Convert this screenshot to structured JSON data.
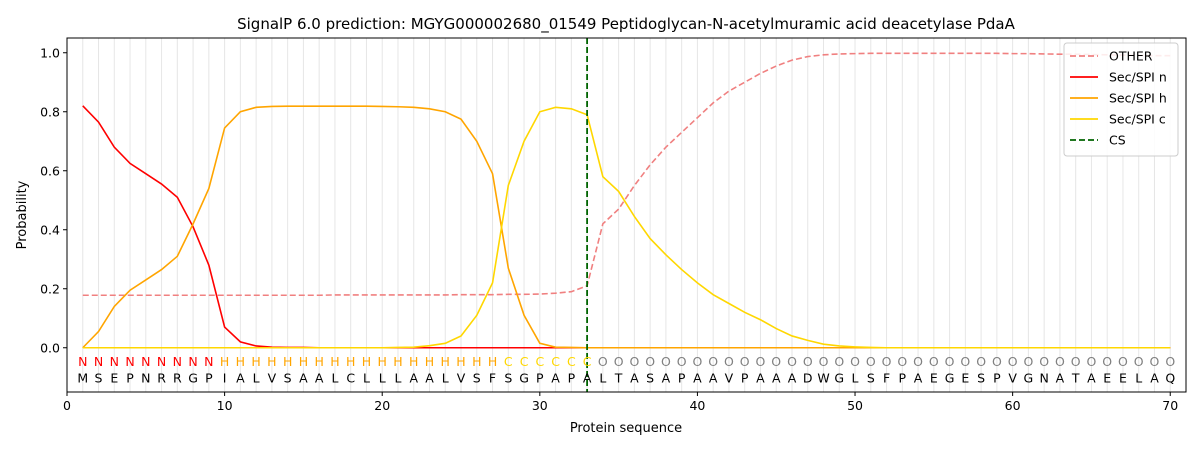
{
  "chart_data": {
    "type": "line",
    "title": "SignalP 6.0 prediction: MGYG000002680_01549 Peptidoglycan-N-acetylmuramic acid deacetylase PdaA",
    "xlabel": "Protein sequence",
    "ylabel": "Probability",
    "xlim": [
      0,
      71
    ],
    "ylim": [
      -0.15,
      1.05
    ],
    "xticks": [
      0,
      10,
      20,
      30,
      40,
      50,
      60,
      70
    ],
    "yticks": [
      0.0,
      0.2,
      0.4,
      0.6,
      0.8,
      1.0
    ],
    "xtick_labels": [
      "0",
      "10",
      "20",
      "30",
      "40",
      "50",
      "60",
      "70"
    ],
    "ytick_labels": [
      "0.0",
      "0.2",
      "0.4",
      "0.6",
      "0.8",
      "1.0"
    ],
    "legend_position": "top-right",
    "vertical_grid": true,
    "cs_position": 33,
    "sequence": [
      "M",
      "S",
      "E",
      "P",
      "N",
      "R",
      "R",
      "G",
      "P",
      "I",
      "A",
      "L",
      "V",
      "S",
      "A",
      "A",
      "L",
      "C",
      "L",
      "L",
      "L",
      "A",
      "A",
      "L",
      "V",
      "S",
      "F",
      "S",
      "G",
      "P",
      "A",
      "P",
      "A",
      "L",
      "T",
      "A",
      "S",
      "A",
      "P",
      "A",
      "A",
      "V",
      "P",
      "A",
      "A",
      "A",
      "D",
      "W",
      "G",
      "L",
      "S",
      "F",
      "P",
      "A",
      "E",
      "G",
      "E",
      "S",
      "P",
      "V",
      "G",
      "N",
      "A",
      "T",
      "A",
      "E",
      "E",
      "L",
      "A",
      "Q"
    ],
    "labels": [
      "N",
      "N",
      "N",
      "N",
      "N",
      "N",
      "N",
      "N",
      "N",
      "H",
      "H",
      "H",
      "H",
      "H",
      "H",
      "H",
      "H",
      "H",
      "H",
      "H",
      "H",
      "H",
      "H",
      "H",
      "H",
      "H",
      "H",
      "C",
      "C",
      "C",
      "C",
      "C",
      "C",
      "O",
      "O",
      "O",
      "O",
      "O",
      "O",
      "O",
      "O",
      "O",
      "O",
      "O",
      "O",
      "O",
      "O",
      "O",
      "O",
      "O",
      "O",
      "O",
      "O",
      "O",
      "O",
      "O",
      "O",
      "O",
      "O",
      "O",
      "O",
      "O",
      "O",
      "O",
      "O",
      "O",
      "O",
      "O",
      "O",
      "O"
    ],
    "label_colors": {
      "N": "#ff0000",
      "H": "#ffa500",
      "C": "#ffd700",
      "O": "#808080"
    },
    "series": [
      {
        "name": "OTHER",
        "color": "#f08080",
        "dash": true,
        "values": [
          0.178,
          0.178,
          0.178,
          0.178,
          0.178,
          0.178,
          0.178,
          0.178,
          0.178,
          0.178,
          0.178,
          0.178,
          0.178,
          0.178,
          0.178,
          0.178,
          0.179,
          0.179,
          0.179,
          0.179,
          0.179,
          0.179,
          0.179,
          0.179,
          0.18,
          0.18,
          0.18,
          0.181,
          0.181,
          0.182,
          0.185,
          0.19,
          0.21,
          0.42,
          0.47,
          0.55,
          0.62,
          0.68,
          0.73,
          0.78,
          0.83,
          0.87,
          0.9,
          0.93,
          0.955,
          0.975,
          0.987,
          0.993,
          0.996,
          0.997,
          0.998,
          0.998,
          0.998,
          0.998,
          0.998,
          0.998,
          0.998,
          0.998,
          0.998,
          0.997,
          0.997,
          0.996,
          0.995,
          0.995,
          0.994,
          0.993,
          0.992,
          0.991,
          0.99,
          0.99
        ]
      },
      {
        "name": "Sec/SPI n",
        "color": "#ff0000",
        "dash": false,
        "values": [
          0.82,
          0.765,
          0.68,
          0.625,
          0.59,
          0.555,
          0.51,
          0.41,
          0.28,
          0.07,
          0.02,
          0.006,
          0.002,
          0.001,
          0.001,
          0,
          0,
          0,
          0,
          0,
          0,
          0,
          0,
          0,
          0,
          0,
          0,
          0,
          0,
          0,
          0,
          0,
          0,
          0,
          0,
          0,
          0,
          0,
          0,
          0,
          0,
          0,
          0,
          0,
          0,
          0,
          0,
          0,
          0,
          0,
          0,
          0,
          0,
          0,
          0,
          0,
          0,
          0,
          0,
          0,
          0,
          0,
          0,
          0,
          0,
          0,
          0,
          0,
          0,
          0
        ]
      },
      {
        "name": "Sec/SPI h",
        "color": "#ffa500",
        "dash": false,
        "values": [
          0.0,
          0.055,
          0.14,
          0.195,
          0.23,
          0.265,
          0.31,
          0.42,
          0.54,
          0.745,
          0.8,
          0.815,
          0.818,
          0.819,
          0.819,
          0.819,
          0.819,
          0.819,
          0.819,
          0.818,
          0.817,
          0.815,
          0.81,
          0.8,
          0.775,
          0.7,
          0.59,
          0.27,
          0.11,
          0.015,
          0.002,
          0.001,
          0,
          0,
          0,
          0,
          0,
          0,
          0,
          0,
          0,
          0,
          0,
          0,
          0,
          0,
          0,
          0,
          0,
          0,
          0,
          0,
          0,
          0,
          0,
          0,
          0,
          0,
          0,
          0,
          0,
          0,
          0,
          0,
          0,
          0,
          0,
          0,
          0,
          0
        ]
      },
      {
        "name": "Sec/SPI c",
        "color": "#ffd700",
        "dash": false,
        "values": [
          0,
          0,
          0,
          0,
          0,
          0,
          0,
          0,
          0,
          0,
          0,
          0,
          0,
          0,
          0,
          0,
          0,
          0,
          0,
          0,
          0.001,
          0.002,
          0.007,
          0.015,
          0.04,
          0.11,
          0.22,
          0.55,
          0.7,
          0.8,
          0.815,
          0.81,
          0.79,
          0.58,
          0.53,
          0.445,
          0.37,
          0.315,
          0.265,
          0.22,
          0.18,
          0.15,
          0.12,
          0.095,
          0.065,
          0.04,
          0.025,
          0.012,
          0.006,
          0.003,
          0.001,
          0,
          0,
          0,
          0,
          0,
          0,
          0,
          0,
          0,
          0,
          0,
          0,
          0,
          0,
          0,
          0,
          0,
          0,
          0
        ]
      }
    ],
    "legend": [
      {
        "name": "OTHER",
        "color": "#f08080",
        "style": "dashed"
      },
      {
        "name": "Sec/SPI n",
        "color": "#ff0000",
        "style": "solid"
      },
      {
        "name": "Sec/SPI h",
        "color": "#ffa500",
        "style": "solid"
      },
      {
        "name": "Sec/SPI c",
        "color": "#ffd700",
        "style": "solid"
      },
      {
        "name": "CS",
        "color": "#006400",
        "style": "dashed"
      }
    ]
  }
}
